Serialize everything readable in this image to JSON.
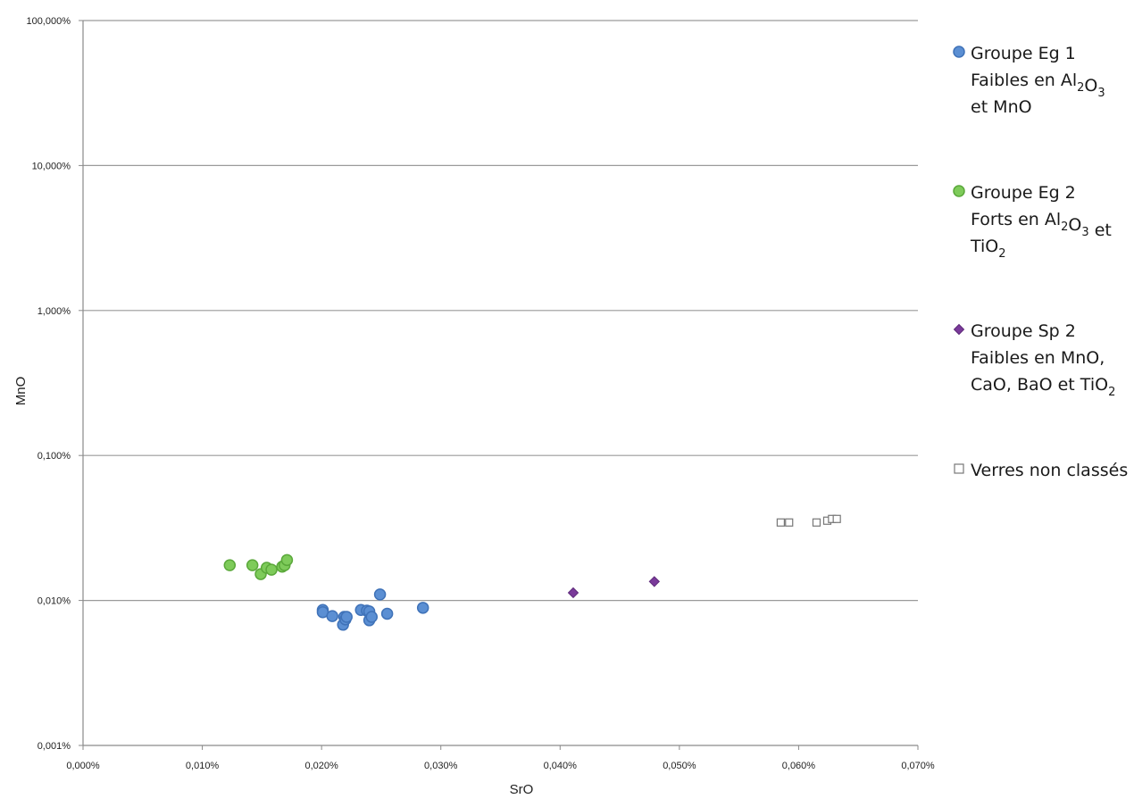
{
  "chart_data": {
    "type": "scatter",
    "xlabel": "SrO",
    "ylabel": "MnO",
    "xlim": [
      0,
      0.07
    ],
    "ylim": [
      0.001,
      100
    ],
    "yscale": "log",
    "grid": "horizontal",
    "legend_position": "right",
    "x_ticks": [
      "0,000%",
      "0,010%",
      "0,020%",
      "0,030%",
      "0,040%",
      "0,050%",
      "0,060%",
      "0,070%"
    ],
    "y_ticks": [
      "0,001%",
      "0,010%",
      "0,100%",
      "1,000%",
      "10,000%",
      "100,000%"
    ],
    "series": [
      {
        "label_lines": [
          "Groupe Eg 1",
          "Faibles en Al$2$O$3$",
          "et MnO"
        ],
        "marker": "circle",
        "color": "#5b8fd3",
        "edge": "#3f72b8",
        "points": [
          [
            0.0201,
            0.0086
          ],
          [
            0.0201,
            0.0083
          ],
          [
            0.0209,
            0.0078
          ],
          [
            0.0218,
            0.0068
          ],
          [
            0.0219,
            0.0077
          ],
          [
            0.022,
            0.0074
          ],
          [
            0.0221,
            0.0077
          ],
          [
            0.0233,
            0.0086
          ],
          [
            0.0238,
            0.0085
          ],
          [
            0.024,
            0.0084
          ],
          [
            0.024,
            0.0073
          ],
          [
            0.0242,
            0.0077
          ],
          [
            0.0249,
            0.011
          ],
          [
            0.0255,
            0.0081
          ],
          [
            0.0285,
            0.0089
          ]
        ]
      },
      {
        "label_lines": [
          "Groupe Eg 2",
          "Forts en Al$2$O$3$ et",
          "TiO$2$"
        ],
        "marker": "circle",
        "color": "#7ecb5a",
        "edge": "#5aa83a",
        "points": [
          [
            0.0123,
            0.0175
          ],
          [
            0.0142,
            0.0175
          ],
          [
            0.0149,
            0.0152
          ],
          [
            0.0154,
            0.0168
          ],
          [
            0.0158,
            0.0163
          ],
          [
            0.0167,
            0.0171
          ],
          [
            0.0169,
            0.0175
          ],
          [
            0.0171,
            0.019
          ]
        ]
      },
      {
        "label_lines": [
          "Groupe Sp 2",
          "Faibles en MnO,",
          "CaO, BaO et TiO$2$"
        ],
        "marker": "diamond",
        "color": "#7a3a9a",
        "edge": "#5e2a7a",
        "points": [
          [
            0.0411,
            0.0113
          ],
          [
            0.0479,
            0.0135
          ]
        ]
      },
      {
        "label_lines": [
          "Verres non classés"
        ],
        "marker": "square-open",
        "color": "#ffffff",
        "edge": "#777777",
        "points": [
          [
            0.0585,
            0.0345
          ],
          [
            0.0592,
            0.0345
          ],
          [
            0.0615,
            0.0345
          ],
          [
            0.0624,
            0.0355
          ],
          [
            0.0628,
            0.0365
          ],
          [
            0.0632,
            0.0365
          ]
        ]
      }
    ]
  }
}
